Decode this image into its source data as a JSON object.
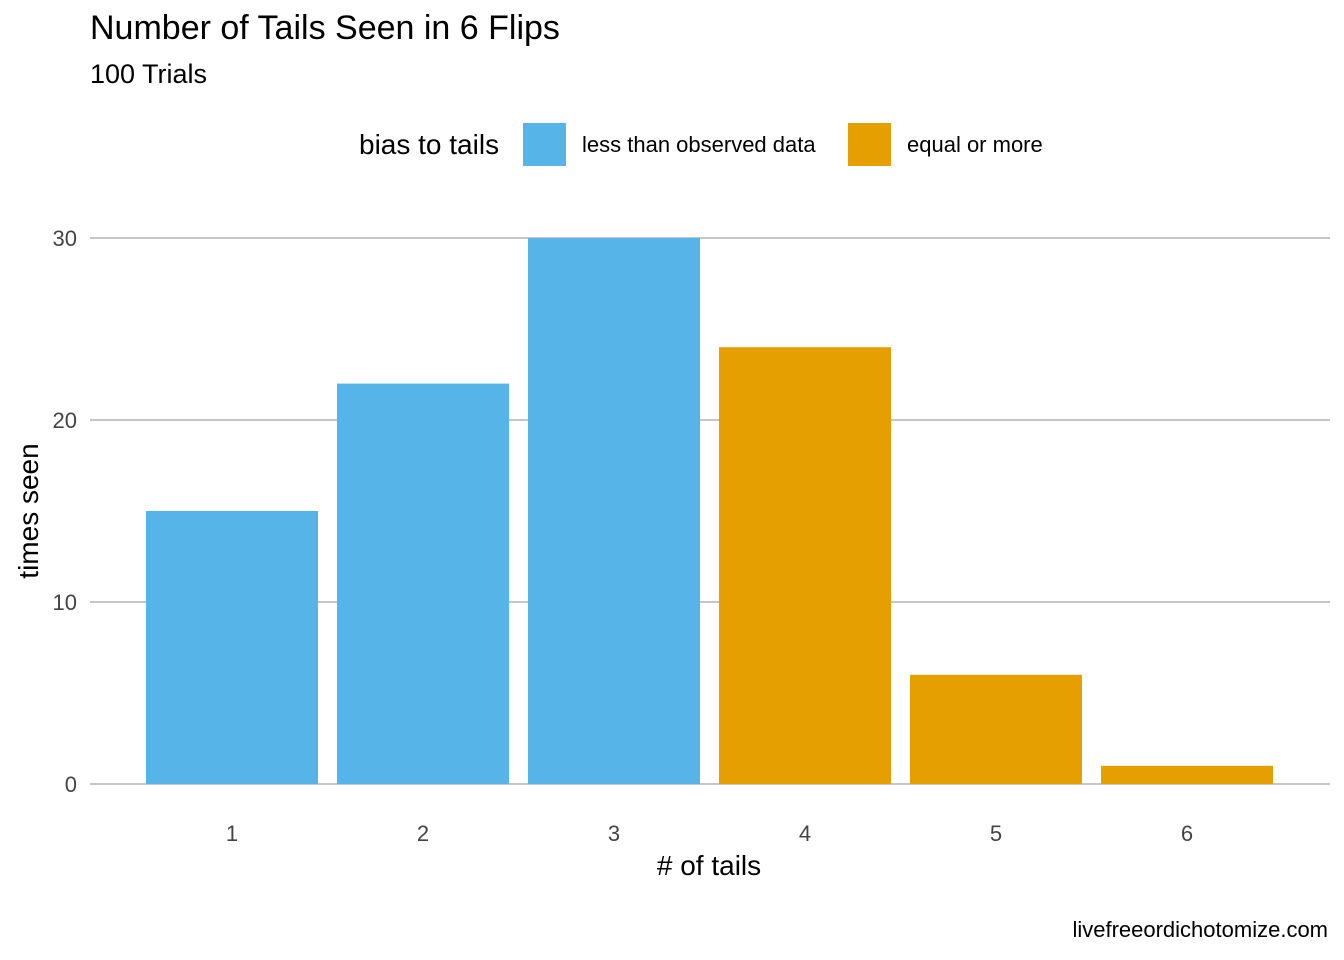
{
  "chart_data": {
    "type": "bar",
    "title": "Number of Tails Seen in 6 Flips",
    "subtitle": "100 Trials",
    "xlabel": "# of tails",
    "ylabel": "times seen",
    "categories": [
      "1",
      "2",
      "3",
      "4",
      "5",
      "6"
    ],
    "values": [
      15,
      22,
      30,
      24,
      6,
      1
    ],
    "groups": [
      "less than observed data",
      "less than observed data",
      "less than observed data",
      "equal or more",
      "equal or more",
      "equal or more"
    ],
    "ylim": [
      0,
      30
    ],
    "yticks": [
      "0",
      "10",
      "20",
      "30"
    ],
    "grid": "horizontal",
    "legend": {
      "title": "bias to tails",
      "position": "top",
      "entries": [
        {
          "label": "less than observed data",
          "color": "#56B4E9"
        },
        {
          "label": "equal or more",
          "color": "#E69F00"
        }
      ]
    },
    "caption": "livefreeordichotomize.com"
  }
}
